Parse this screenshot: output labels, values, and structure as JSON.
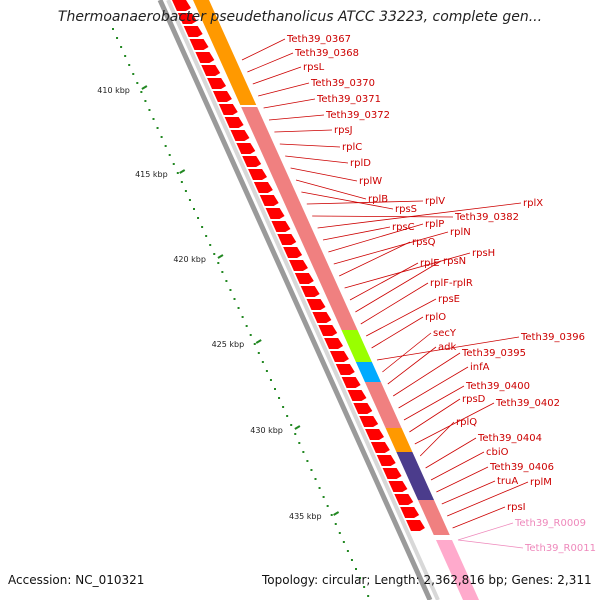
{
  "header": {
    "title": "Thermoanaerobacter pseudethanolicus ATCC 33223, complete gen..."
  },
  "footer": {
    "accession": "Accession: NC_010321",
    "topology": "Topology: circular; Length: 2,362,816 bp; Genes: 2,311"
  },
  "ruler": {
    "labels": [
      "410 kbp",
      "415 kbp",
      "420 kbp",
      "425 kbp",
      "430 kbp",
      "435 kbp"
    ]
  },
  "colors": {
    "cds": "#ff0000",
    "cds_light": "#f08080",
    "orange": "#ff9900",
    "rrna_green": "#99ff00",
    "trna_blue": "#00aaff",
    "navy": "#4b3c8c",
    "pink": "#ffaacc",
    "label_red": "#cc0000",
    "label_pink": "#ee88bb",
    "tick_green": "#228822",
    "backbone": "#888888"
  },
  "genes": [
    {
      "name": "Teth39_0367",
      "color": "red"
    },
    {
      "name": "Teth39_0368",
      "color": "red"
    },
    {
      "name": "rpsL",
      "color": "red"
    },
    {
      "name": "Teth39_0370",
      "color": "red"
    },
    {
      "name": "Teth39_0371",
      "color": "red"
    },
    {
      "name": "Teth39_0372",
      "color": "red"
    },
    {
      "name": "rpsJ",
      "color": "red"
    },
    {
      "name": "rplC",
      "color": "red"
    },
    {
      "name": "rplD",
      "color": "red"
    },
    {
      "name": "rplW",
      "color": "red"
    },
    {
      "name": "rplB",
      "color": "red"
    },
    {
      "name": "rpsS",
      "color": "red"
    },
    {
      "name": "rplV",
      "color": "red"
    },
    {
      "name": "Teth39_0382",
      "color": "red"
    },
    {
      "name": "rplX",
      "color": "red"
    },
    {
      "name": "rpsC",
      "color": "red"
    },
    {
      "name": "rplP",
      "color": "red"
    },
    {
      "name": "rplN",
      "color": "red"
    },
    {
      "name": "rpsQ",
      "color": "red"
    },
    {
      "name": "rpsH",
      "color": "red"
    },
    {
      "name": "rplE",
      "color": "red"
    },
    {
      "name": "rpsN",
      "color": "red"
    },
    {
      "name": "rplF-rplR",
      "color": "red"
    },
    {
      "name": "rpsE",
      "color": "red"
    },
    {
      "name": "rplO",
      "color": "red"
    },
    {
      "name": "Teth39_0396",
      "color": "red"
    },
    {
      "name": "secY",
      "color": "red"
    },
    {
      "name": "adk",
      "color": "red"
    },
    {
      "name": "Teth39_0395",
      "color": "red"
    },
    {
      "name": "infA",
      "color": "red"
    },
    {
      "name": "Teth39_0400",
      "color": "red"
    },
    {
      "name": "rpsD",
      "color": "red"
    },
    {
      "name": "Teth39_0402",
      "color": "red"
    },
    {
      "name": "rplQ",
      "color": "red"
    },
    {
      "name": "Teth39_0404",
      "color": "red"
    },
    {
      "name": "cbiO",
      "color": "red"
    },
    {
      "name": "Teth39_0406",
      "color": "red"
    },
    {
      "name": "truA",
      "color": "red"
    },
    {
      "name": "rplM",
      "color": "red"
    },
    {
      "name": "rpsI",
      "color": "red"
    },
    {
      "name": "Teth39_R0009",
      "color": "pink"
    },
    {
      "name": "Teth39_R0011",
      "color": "pink"
    }
  ]
}
